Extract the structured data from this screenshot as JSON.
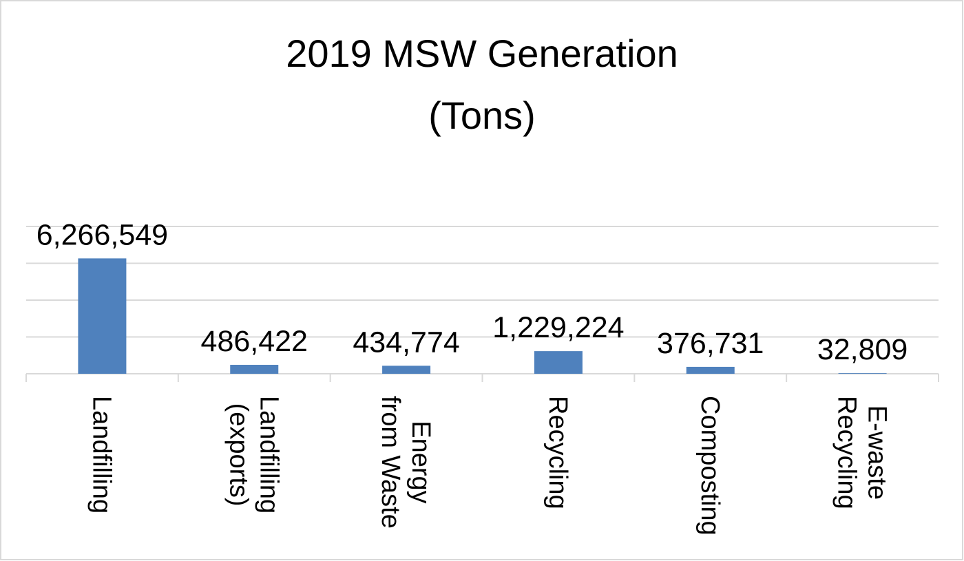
{
  "chart_data": {
    "type": "bar",
    "title": "2019 MSW Generation (Tons)",
    "categories": [
      "Landfilling",
      "Landfilling (exports)",
      "Energy from Waste",
      "Recycling",
      "Composting",
      "E-waste Recycling"
    ],
    "values": [
      6266549,
      486422,
      434774,
      1229224,
      376731,
      32809
    ],
    "value_labels": [
      "6,266,549",
      "486,422",
      "434,774",
      "1,229,224",
      "376,731",
      "32,809"
    ],
    "color": "#4f81bd",
    "ylim": [
      0,
      8000000
    ],
    "yticks": [
      0,
      2000000,
      4000000,
      6000000,
      8000000
    ],
    "grid": true
  }
}
